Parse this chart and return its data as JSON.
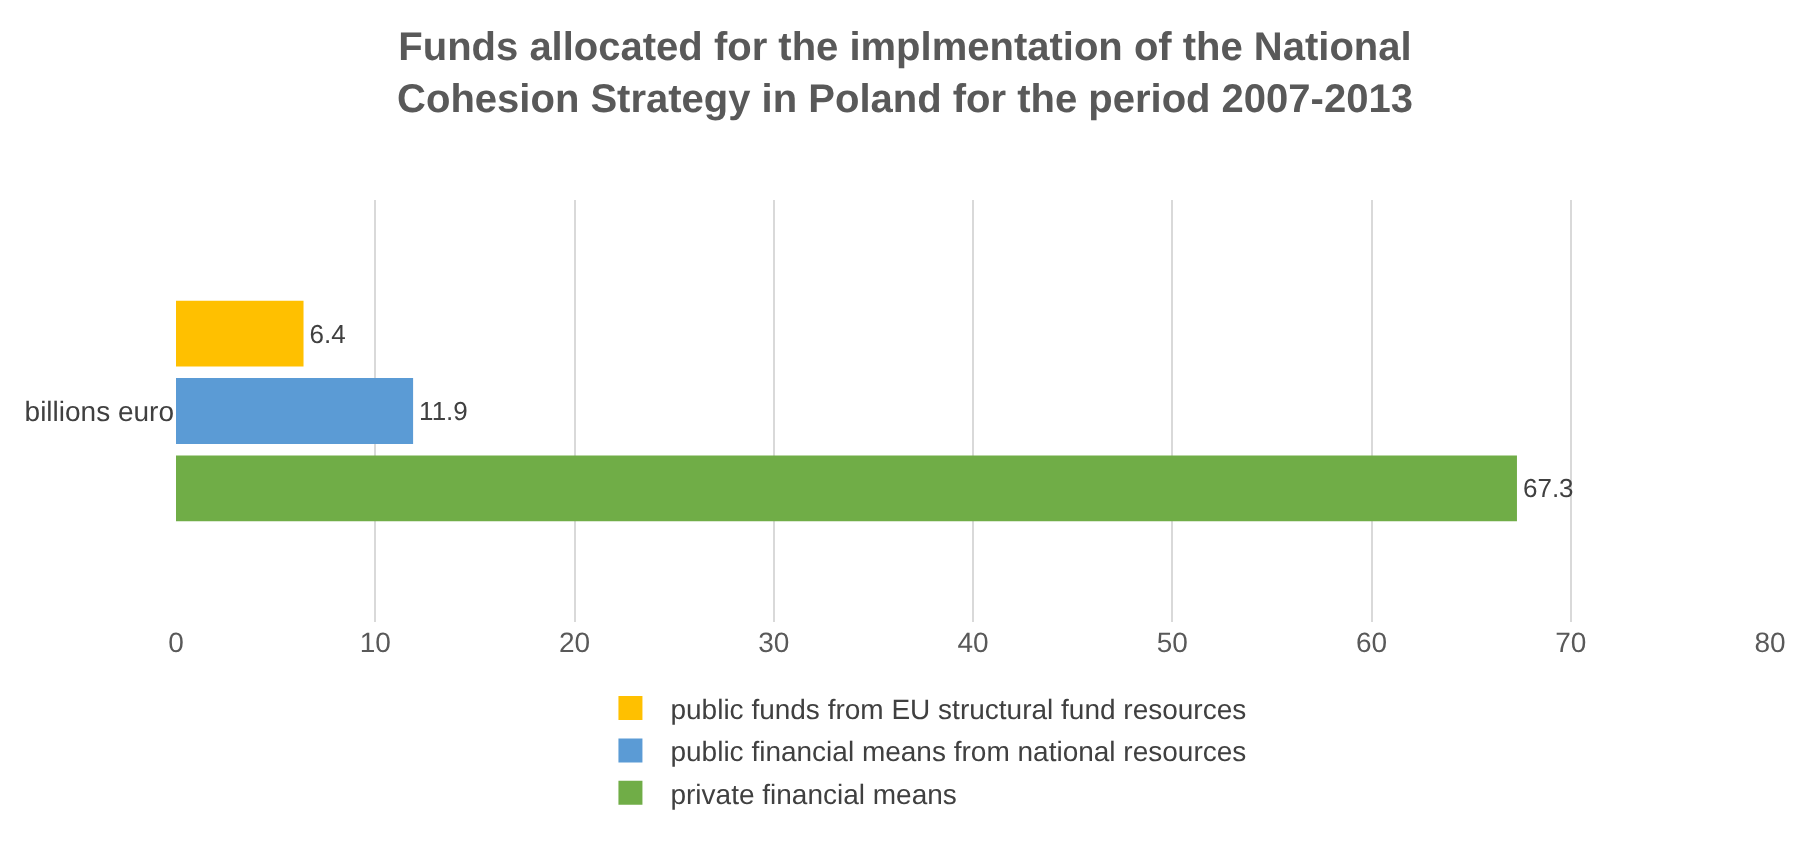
{
  "chart_data": {
    "type": "bar",
    "orientation": "horizontal",
    "title": "Funds allocated for the implmentation of the National\nCohesion Strategy in Poland for the period 2007-2013",
    "categories": [
      "billions euro"
    ],
    "series": [
      {
        "name": "public funds from EU structural fund resources",
        "color": "#ffc000",
        "values": [
          6.4
        ]
      },
      {
        "name": "public financial means from national resources",
        "color": "#5b9bd5",
        "values": [
          11.9
        ]
      },
      {
        "name": "private financial means",
        "color": "#70ad47",
        "values": [
          67.3
        ]
      }
    ],
    "xlim": [
      0,
      80
    ],
    "xticks": [
      0,
      10,
      20,
      30,
      40,
      50,
      60,
      70,
      80
    ],
    "grid": "x",
    "legend": "bottom",
    "data_labels": true
  }
}
